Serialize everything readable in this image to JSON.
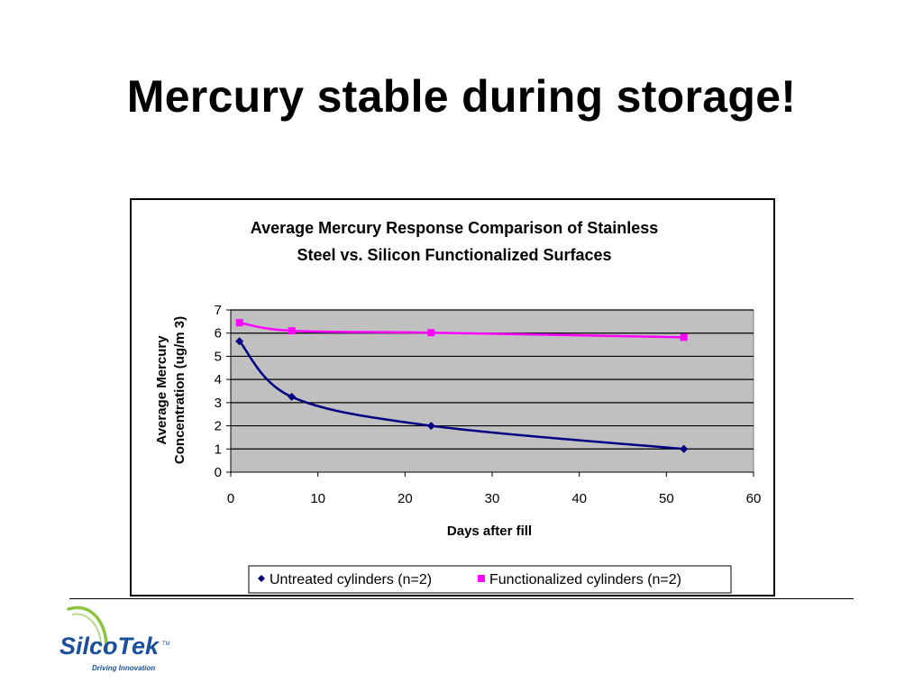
{
  "slide": {
    "title": "Mercury stable during storage!"
  },
  "logo": {
    "name": "SilcoTek",
    "tagline": "Driving Innovation",
    "tm": "TM"
  },
  "colors": {
    "untreated": "#000080",
    "functionalized": "#ff00ff",
    "plot_bg": "#c0c0c0"
  },
  "chart_data": {
    "type": "line",
    "title_lines": [
      "Average Mercury Response Comparison of Stainless",
      "Steel vs. Silicon Functionalized Surfaces"
    ],
    "xlabel": "Days after fill",
    "ylabel_lines": [
      "Average Mercury",
      "Concentration (ug/m 3)"
    ],
    "xlim": [
      0,
      60
    ],
    "ylim": [
      0,
      7
    ],
    "xticks": [
      0,
      10,
      20,
      30,
      40,
      50,
      60
    ],
    "yticks": [
      0,
      1,
      2,
      3,
      4,
      5,
      6,
      7
    ],
    "grid": "horizontal",
    "legend_position": "bottom",
    "series": [
      {
        "name": "Untreated cylinders (n=2)",
        "marker": "diamond",
        "x": [
          1,
          7,
          23,
          52
        ],
        "y": [
          5.65,
          3.25,
          2.0,
          1.0
        ]
      },
      {
        "name": "Functionalized cylinders (n=2)",
        "marker": "square",
        "x": [
          1,
          7,
          23,
          52
        ],
        "y": [
          6.45,
          6.1,
          6.02,
          5.82
        ]
      }
    ]
  }
}
